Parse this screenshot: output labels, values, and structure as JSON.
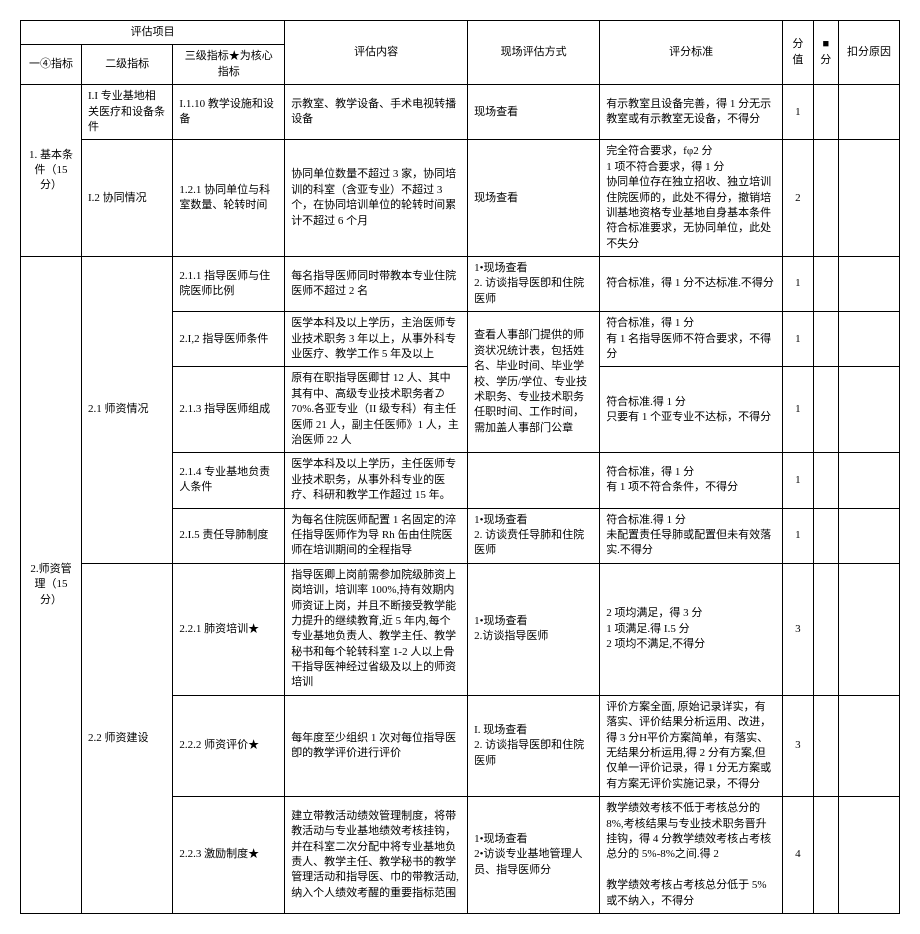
{
  "headers": {
    "group": "评估项目",
    "h1": "一④指标",
    "h2": "二级指标",
    "h3": "三级指标★为核心指标",
    "h4": "评估内容",
    "h5": "现场评估方式",
    "h6": "评分标准",
    "h7": "分值",
    "h8": "■分",
    "h9": "扣分原因"
  },
  "rows": [
    {
      "c1": "1. 基本条件（15 分）",
      "c1rs": 2,
      "c2": "I.I 专业基地相关医疗和设备条件",
      "c2rs": 1,
      "c3": "I.1.10 教学设施和设备",
      "c4": "示教室、教学设备、手术电视转播设备",
      "c5": "现场查看",
      "c6": "有示教室且设备完善，得 1 分无示教室或有示教室无设备，不得分",
      "c7": "1"
    },
    {
      "c2": "I.2 协同情况",
      "c2rs": 1,
      "c3": "1.2.1 协同单位与科室数量、轮转时间",
      "c4": "协同单位数量不超过 3 家，协同培训的科室（含亚专业）不超过 3 个，在协同培训单位的轮转时间累计不超过 6 个月",
      "c5": "现场查看",
      "c6": "完全符合要求，fφ2 分\n1 项不符合要求，得 1 分\n协同单位存在独立招收、独立培训住院医师的，此处不得分，撤销培训基地资格专业基地自身基本条件符合标准要求，无协同单位，此处不失分",
      "c7": "2"
    },
    {
      "c1": "2.师资管理（15 分）",
      "c1rs": 8,
      "c2": "2.1 师资情况",
      "c2rs": 5,
      "c3": "2.1.1 指导医师与住院医师比例",
      "c4": "每名指导医师同时带教本专业住院医师不超过 2 名",
      "c5": "1•现场查看\n2. 访谈指导医卽和住院医师",
      "c6": "符合标准，得 1 分不达标准.不得分",
      "c7": "1"
    },
    {
      "c3": "2.I,2 指导医师条件",
      "c4": "医学本科及以上学历，主治医师专业技术职务 3 年以上，从事外科专业医疗、教学工作 5 年及以上",
      "c5r": 2,
      "c5": "查看人事部门提供的师资状况统计表，包括姓名、毕业时间、毕业学校、学历/学位、专业技术职务、专业技术职务任职时间、工作时间，需加盖人事部门公章",
      "c6": "符合标准，得 1 分\n有 1 名指导医师不符合要求，不得分",
      "c7": "1"
    },
    {
      "c3": "2.1.3 指导医师组成",
      "c4": "原有在职指导医卿甘 12 人、其中其有中、高级专业技术职务者⊅ 70%.各亚专业（II 级专科）有主任医师 21 人，副主任医师》1 人，主治医师 22 人",
      "c6": "符合标准.得 1 分\n只要有 1 个亚专业不达标，不得分",
      "c7": "1"
    },
    {
      "c3": "2.1.4 专业基地贠责人条件",
      "c4": "医学本科及以上学历，主任医师专业技术职务，从事外科专业的医疗、科研和教学工作超过 15 年。",
      "c5": "",
      "c6": "符合标准，得 1 分\n有 1 项不符合条件，不得分",
      "c7": "1"
    },
    {
      "c3": "2.I.5 责任导肺制度",
      "c4": "为每名住院医师配置 1 名固定的淬任指导医师作为导 Rh 缶由住院医师在培训期间的全程指导",
      "c5": "1•现场查看\n2. 访谈贲任导肺和住院医师",
      "c6": "符合标准.得 1 分\n未配置责任导肺或配置但未有效落实.不得分",
      "c7": "1"
    },
    {
      "c2": "2.2 师资建设",
      "c2rs": 3,
      "c3": "2.2.1 肺资培训★",
      "c4": "指导医卿上岗前需参加院级肺资上岗培训，培训率 100%,持有效期内师资证上岗，并且不断接受教学能力提升的继续教育,近 5 年内,每个专业基地负责人、教学主任、教学秘书和每个轮转科室 1-2 人以上骨干指导医神经过省级及以上的师资培训",
      "c5": "1•现场查看\n2.访谈指导医师",
      "c6": "2 项均满足，得 3 分\n1 项满足.得 I.5 分\n2 项均不满足,不得分",
      "c7": "3"
    },
    {
      "c3": "2.2.2 师资评价★",
      "c4": "每年度至少组织 1 次对每位指导医卽的教学评价进行评价",
      "c5": "I. 现场查看\n2. 访谈指导医卽和住院医师",
      "c6": "评价方案全面, 原始记录详实，有落实、评价结果分析运用、改进，得 3 分H平价方案简单，有落实、无结果分析运用,得 2 分有方案,但仅单一评价记录，得 1 分无方案或有方案无评价实施记录，不得分",
      "c7": "3"
    },
    {
      "c3": "2.2.3 激励制度★",
      "c4": "建立带教活动绩效管理制度，将带教活动与专业基地绩效考核挂钩，并在科室二次分配中将专业基地负责人、教学主任、教学秘书的教学管理活动和指导医、巾的带教活动,纳入个人绩效考醒的重要指标范围",
      "c5": "1•现场查看\n2•访谈专业基地管理人员、指导医师分",
      "c6": "教学绩效考核不低于考核总分的 8%,考核结果与专业技术职务晋升挂钩，得 4 分教学绩效考核占考核总分的 5%-8%之间.得 2\n\n教学绩效考核占考核总分低于 5%或不纳入，不得分",
      "c7": "4"
    }
  ]
}
